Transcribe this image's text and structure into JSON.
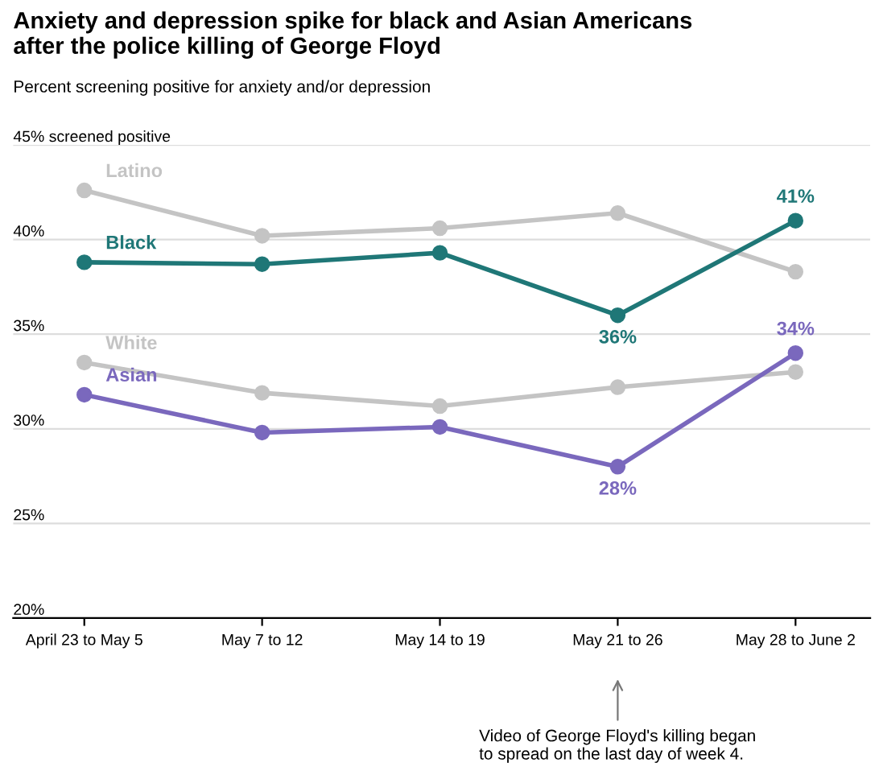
{
  "chart_data": {
    "type": "line",
    "title": "Anxiety and depression spike for black and Asian Americans\nafter the police killing of George Floyd",
    "subtitle": "Percent screening positive for anxiety and/or depression",
    "categories": [
      "April 23 to May 5",
      "May 7 to 12",
      "May 14 to 19",
      "May 21 to 26",
      "May 28 to June 2"
    ],
    "series": [
      {
        "name": "Latino",
        "color": "#c4c4c4",
        "values": [
          42.6,
          40.2,
          40.6,
          41.4,
          38.3
        ]
      },
      {
        "name": "Black",
        "color": "#1f7777",
        "values": [
          38.8,
          38.7,
          39.3,
          36,
          41
        ],
        "value_labels": [
          null,
          null,
          null,
          "36%",
          "41%"
        ]
      },
      {
        "name": "White",
        "color": "#c4c4c4",
        "values": [
          33.5,
          31.9,
          31.2,
          32.2,
          33.0
        ]
      },
      {
        "name": "Asian",
        "color": "#7a68bd",
        "values": [
          31.8,
          29.8,
          30.1,
          28,
          34
        ],
        "value_labels": [
          null,
          null,
          null,
          "28%",
          "34%"
        ]
      }
    ],
    "ylim": [
      20,
      45
    ],
    "yticks": [
      {
        "value": 20,
        "label": "20%"
      },
      {
        "value": 25,
        "label": "25%"
      },
      {
        "value": 30,
        "label": "30%"
      },
      {
        "value": 35,
        "label": "35%"
      },
      {
        "value": 40,
        "label": "40%"
      },
      {
        "value": 45,
        "label": "45% screened positive"
      }
    ],
    "grid": "y",
    "marker": "circle",
    "legend": false,
    "annotations": [
      "Video of George Floyd's killing began\nto spread on the last day of week 4."
    ]
  }
}
